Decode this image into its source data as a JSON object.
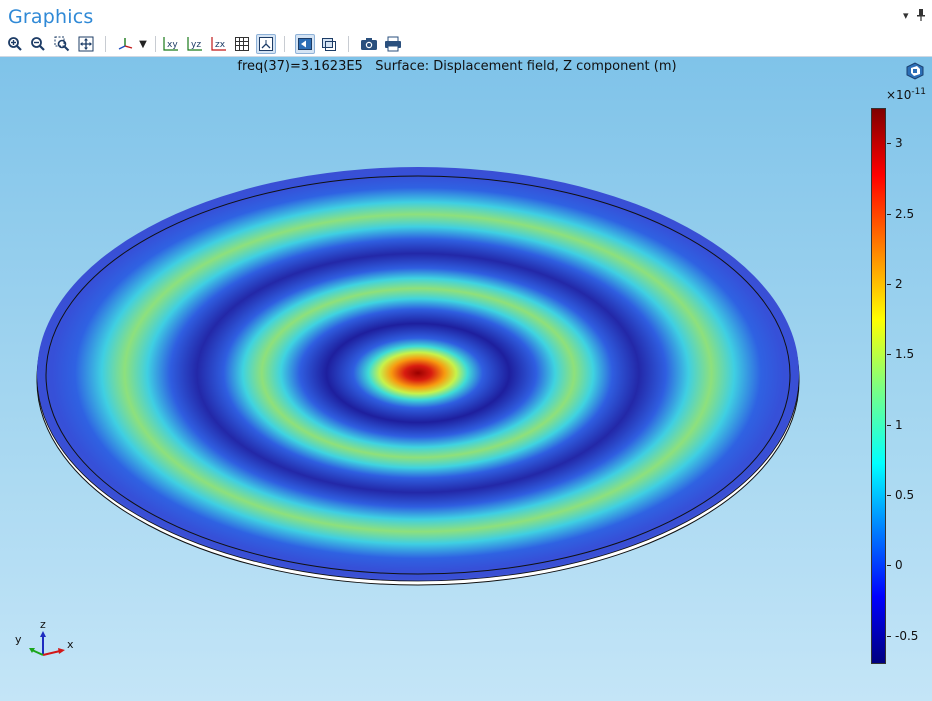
{
  "window": {
    "title": "Graphics"
  },
  "toolbar": {
    "buttons": [
      {
        "name": "zoom-in-icon"
      },
      {
        "name": "zoom-out-icon"
      },
      {
        "name": "zoom-box-icon"
      },
      {
        "name": "zoom-extents-icon"
      },
      {
        "name": "axis-orientation-icon"
      },
      {
        "name": "dropdown-arrow-icon"
      },
      {
        "name": "view-xy-icon",
        "label": "xy"
      },
      {
        "name": "view-yz-icon",
        "label": "yz"
      },
      {
        "name": "view-zx-icon",
        "label": "zx"
      },
      {
        "name": "grid-icon"
      },
      {
        "name": "show-axis-icon"
      },
      {
        "name": "scene-light-icon"
      },
      {
        "name": "transparency-icon"
      },
      {
        "name": "camera-icon"
      },
      {
        "name": "print-icon"
      }
    ]
  },
  "plot": {
    "title": "freq(37)=3.1623E5   Surface: Displacement field, Z component (m)"
  },
  "colorbar": {
    "exponent_base": "×10",
    "exponent_power": "-11",
    "min": -0.7,
    "max": 3.25,
    "ticks": [
      "3",
      "2.5",
      "2",
      "1.5",
      "1",
      "0.5",
      "0",
      "-0.5"
    ],
    "tick_values": [
      3,
      2.5,
      2,
      1.5,
      1,
      0.5,
      0,
      -0.5
    ]
  },
  "triad": {
    "x": "x",
    "y": "y",
    "z": "z"
  },
  "colors": {
    "title_blue": "#2f89d6",
    "viewport_top": "#7fc3e9",
    "viewport_bottom": "#c4e5f7"
  }
}
